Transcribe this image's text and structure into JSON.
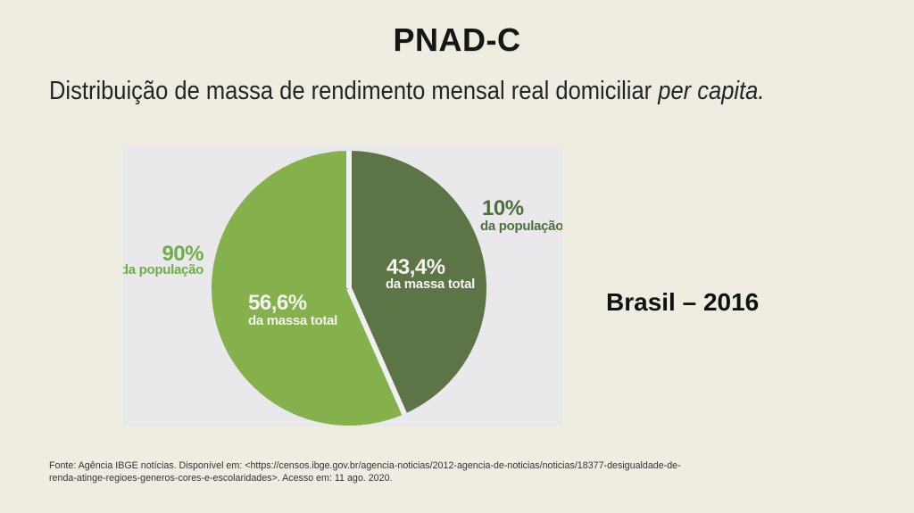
{
  "slide": {
    "title": "PNAD-C",
    "subtitle": {
      "main": "Distribuição de massa de rendimento mensal real domiciliar",
      "italic": "per capita."
    },
    "caption": "Brasil – 2016",
    "source": {
      "line1": "Fonte: Agência IBGE notícias. Disponível em: <https://censos.ibge.gov.br/agencia-noticias/2012-agencia-de-noticias/noticias/18377-desigualdade-de-",
      "line2": "renda-atinge-regioes-generos-cores-e-escolaridades>. Acesso em: 11 ago. 2020."
    }
  },
  "chart_data": {
    "type": "pie",
    "title": "Distribuição de massa de rendimento mensal real domiciliar per capita — Brasil 2016",
    "unit": "percent",
    "direction": "clockwise",
    "start_angle_deg": 0,
    "legend_position": "none",
    "categories": [
      "10% da população",
      "90% da população"
    ],
    "values": [
      43.4,
      56.6
    ],
    "slices": [
      {
        "population_label": "10%",
        "population_sublabel": "da população",
        "mass_label": "43,4%",
        "mass_sublabel": "da massa total",
        "mass_value_pct": 43.4,
        "color": "#5c7446",
        "outside_label_color": "#4e6f3d"
      },
      {
        "population_label": "90%",
        "population_sublabel": "da população",
        "mass_label": "56,6%",
        "mass_sublabel": "da massa total",
        "mass_value_pct": 56.6,
        "color": "#84b14b",
        "outside_label_color": "#6fae43"
      }
    ],
    "inside_label_color": "#f4f5ef",
    "gap_color": "#f1f1f2"
  },
  "colors": {
    "page_bg": "#efece1",
    "panel_bg": "#e9e9ec",
    "title_text": "#161616",
    "subtitle_text": "#242424",
    "caption_text": "#111111",
    "source_text": "#333333"
  }
}
